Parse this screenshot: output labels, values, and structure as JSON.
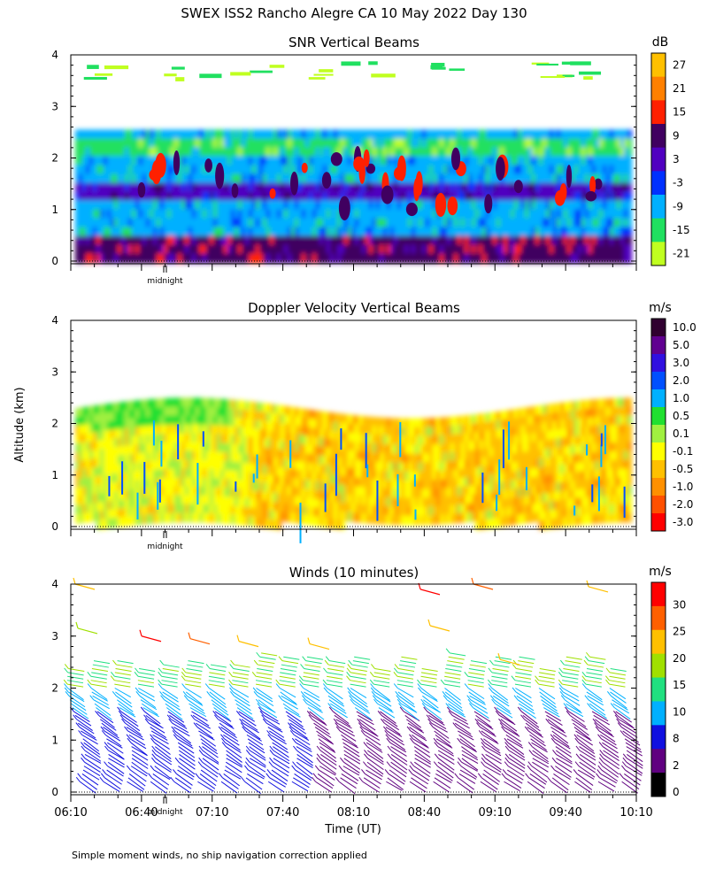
{
  "figure": {
    "title": "SWEX ISS2 Rancho Alegre CA  10 May 2022 Day 130",
    "shared_ylabel": "Altitude (km)",
    "xlabel": "Time (UT)",
    "footnote": "Simple moment winds, no ship navigation correction applied",
    "midnight_label": "midnight"
  },
  "chart_data": [
    {
      "type": "heatmap",
      "title": "SNR Vertical Beams",
      "ylim": [
        0,
        4
      ],
      "yticks": [
        "0",
        "1",
        "2",
        "3",
        "4"
      ],
      "xlim": [
        "06:10",
        "10:10"
      ],
      "colorbar": {
        "unit": "dB",
        "labels": [
          "27",
          "21",
          "15",
          "9",
          "3",
          "-3",
          "-9",
          "-15",
          "-21"
        ],
        "colors": [
          "#ffc000",
          "#ff8000",
          "#ff2000",
          "#400060",
          "#5000c0",
          "#0030ff",
          "#00b0ff",
          "#20e060",
          "#c0ff20"
        ]
      },
      "layers": [
        {
          "alt_range": [
            0.1,
            0.5
          ],
          "level": "9"
        },
        {
          "alt_range": [
            0.5,
            1.3
          ],
          "level": "-9"
        },
        {
          "alt_range": [
            1.3,
            1.6
          ],
          "level": "3"
        },
        {
          "alt_range": [
            1.6,
            2.2
          ],
          "level": "-9"
        },
        {
          "alt_range": [
            2.2,
            2.5
          ],
          "level": "-15"
        }
      ]
    },
    {
      "type": "heatmap",
      "title": "Doppler Velocity Vertical Beams",
      "ylim": [
        0,
        4
      ],
      "yticks": [
        "0",
        "1",
        "2",
        "3",
        "4"
      ],
      "xlim": [
        "06:10",
        "10:10"
      ],
      "colorbar": {
        "unit": "m/s",
        "labels": [
          "10.0",
          "5.0",
          "3.0",
          "2.0",
          "1.0",
          "0.5",
          "0.1",
          "-0.1",
          "-0.5",
          "-1.0",
          "-2.0",
          "-3.0"
        ],
        "colors": [
          "#300030",
          "#600090",
          "#3010e0",
          "#0050ff",
          "#00b0ff",
          "#20e030",
          "#a0f040",
          "#ffff00",
          "#ffc000",
          "#ff9000",
          "#ff5000",
          "#ff0000"
        ]
      }
    },
    {
      "type": "scatter",
      "title": "Winds (10 minutes)",
      "ylim": [
        0,
        4
      ],
      "yticks": [
        "0",
        "1",
        "2",
        "3",
        "4"
      ],
      "xticks": [
        "06:10",
        "06:40",
        "07:10",
        "07:40",
        "08:10",
        "08:40",
        "09:10",
        "09:40",
        "10:10"
      ],
      "xlim": [
        "06:10",
        "10:10"
      ],
      "colorbar": {
        "unit": "m/s",
        "labels": [
          "30",
          "25",
          "20",
          "15",
          "10",
          "8",
          "2",
          "0"
        ],
        "colors": [
          "#ff0000",
          "#ff6000",
          "#ffc000",
          "#a0e000",
          "#20e080",
          "#00b0ff",
          "#1010e0",
          "#600080",
          "#000000"
        ]
      },
      "profile_times": [
        "06:10",
        "06:20",
        "06:30",
        "06:40",
        "06:50",
        "07:00",
        "07:10",
        "07:20",
        "07:30",
        "07:40",
        "07:50",
        "08:00",
        "08:10",
        "08:20",
        "08:30",
        "08:40",
        "08:50",
        "09:00",
        "09:10",
        "09:20",
        "09:30",
        "09:40",
        "09:50",
        "10:00"
      ]
    }
  ]
}
